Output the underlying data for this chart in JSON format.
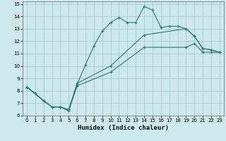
{
  "xlabel": "Humidex (Indice chaleur)",
  "bg_color": "#cce8ea",
  "grid_color": "#aacfd4",
  "line_color": "#2a7a6a",
  "xlim": [
    -0.5,
    23.5
  ],
  "ylim": [
    6,
    15.2
  ],
  "xticks": [
    0,
    1,
    2,
    3,
    4,
    5,
    6,
    7,
    8,
    9,
    10,
    11,
    12,
    13,
    14,
    15,
    16,
    17,
    18,
    19,
    20,
    21,
    22,
    23
  ],
  "yticks": [
    6,
    7,
    8,
    9,
    10,
    11,
    12,
    13,
    14,
    15
  ],
  "series1_x": [
    0,
    1,
    2,
    3,
    4,
    5,
    6,
    7,
    8,
    9,
    10,
    11,
    12,
    13,
    14,
    15,
    16,
    17,
    18,
    19,
    20,
    21,
    22,
    23
  ],
  "series1_y": [
    8.3,
    7.8,
    7.2,
    6.7,
    6.7,
    6.4,
    8.5,
    10.1,
    11.6,
    12.8,
    13.5,
    13.9,
    13.5,
    13.5,
    14.8,
    14.5,
    13.1,
    13.2,
    13.2,
    13.0,
    12.4,
    11.4,
    11.3,
    11.1
  ],
  "series2_x": [
    0,
    2,
    3,
    4,
    5,
    6,
    10,
    14,
    19,
    20,
    21,
    22,
    23
  ],
  "series2_y": [
    8.3,
    7.2,
    6.7,
    6.7,
    6.5,
    8.6,
    10.0,
    12.5,
    13.0,
    12.4,
    11.4,
    11.3,
    11.1
  ],
  "series3_x": [
    0,
    2,
    3,
    4,
    5,
    6,
    10,
    14,
    19,
    20,
    21,
    22,
    23
  ],
  "series3_y": [
    8.3,
    7.2,
    6.7,
    6.7,
    6.4,
    8.4,
    9.5,
    11.5,
    11.5,
    11.8,
    11.1,
    11.1,
    11.1
  ]
}
